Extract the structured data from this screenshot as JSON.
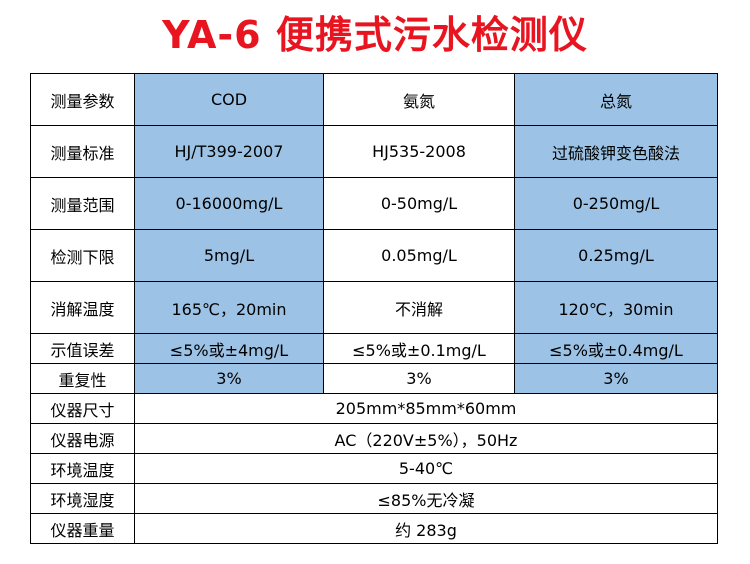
{
  "title": "YA-6 便携式污水检测仪",
  "rows": [
    {
      "label": "测量参数",
      "cells": [
        "COD",
        "氨氮",
        "总氮"
      ]
    },
    {
      "label": "测量标准",
      "cells": [
        "HJ/T399-2007",
        "HJ535-2008",
        "过硫酸钾变色酸法"
      ]
    },
    {
      "label": "测量范围",
      "cells": [
        "0-16000mg/L",
        "0-50mg/L",
        "0-250mg/L"
      ]
    },
    {
      "label": "检测下限",
      "cells": [
        "5mg/L",
        "0.05mg/L",
        "0.25mg/L"
      ]
    },
    {
      "label": "消解温度",
      "cells": [
        "165℃，20min",
        "不消解",
        "120℃，30min"
      ]
    },
    {
      "label": "示值误差",
      "cells": [
        "≤5%或±4mg/L",
        "≤5%或±0.1mg/L",
        "≤5%或±0.4mg/L"
      ]
    },
    {
      "label": "重复性",
      "cells": [
        "3%",
        "3%",
        "3%"
      ]
    }
  ],
  "spans": [
    {
      "label": "仪器尺寸",
      "value": "205mm*85mm*60mm"
    },
    {
      "label": "仪器电源",
      "value": "AC（220V±5%），50Hz"
    },
    {
      "label": "环境温度",
      "value": "5-40℃"
    },
    {
      "label": "环境湿度",
      "value": "≤85%无冷凝"
    },
    {
      "label": "仪器重量",
      "value": "约 283g"
    }
  ],
  "colors": {
    "title": "#e8141f",
    "highlight": "#9cc3e5",
    "border": "#000000"
  }
}
